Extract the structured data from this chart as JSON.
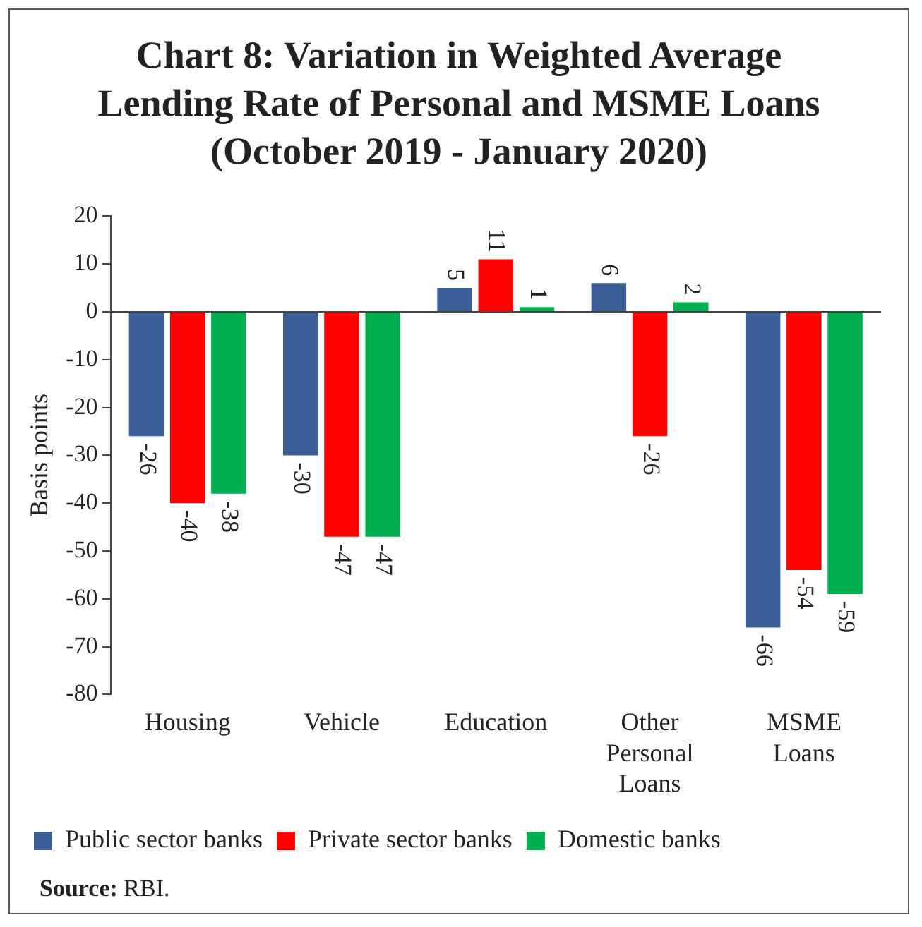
{
  "chart_data": {
    "type": "bar",
    "title": "Chart 8: Variation in Weighted Average Lending Rate of Personal and MSME Loans (October 2019 - January 2020)",
    "ylabel": "Basis points",
    "categories": [
      "Housing",
      "Vehicle",
      "Education",
      "Other Personal Loans",
      "MSME Loans"
    ],
    "series": [
      {
        "name": "Public sector banks",
        "color": "#3a5f96",
        "values": [
          -26,
          -30,
          5,
          6,
          -66
        ]
      },
      {
        "name": "Private sector banks",
        "color": "#ff0000",
        "values": [
          -40,
          -47,
          11,
          -26,
          -54
        ]
      },
      {
        "name": "Domestic banks",
        "color": "#00b050",
        "values": [
          -38,
          -47,
          1,
          2,
          -59
        ]
      }
    ],
    "ylim": [
      -80,
      20
    ],
    "yticks": [
      20,
      10,
      0,
      -10,
      -20,
      -30,
      -40,
      -50,
      -60,
      -70,
      -80
    ],
    "legend": "bottom",
    "data_labels": true,
    "annotations": [
      "Source: RBI."
    ]
  }
}
